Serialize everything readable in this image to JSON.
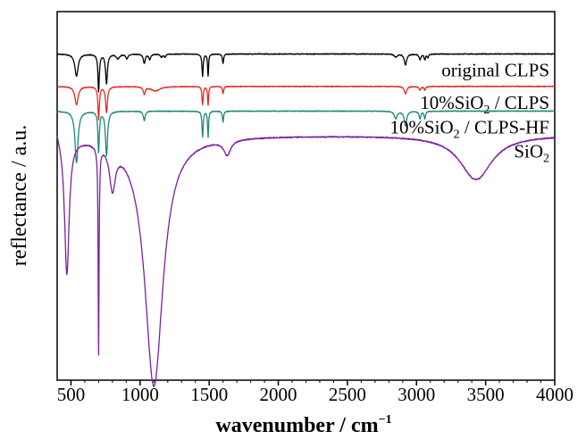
{
  "chart_data": {
    "type": "line",
    "title": "",
    "xlabel": "wavenumber / cm",
    "xlabel_superscript": "−1",
    "ylabel": "reflectance / a.u.",
    "xlim": [
      400,
      4000
    ],
    "ylim": [
      0,
      1
    ],
    "x_ticks": [
      500,
      1000,
      1500,
      2000,
      2500,
      3000,
      3500,
      4000
    ],
    "y_ticks": [],
    "grid": false,
    "legend": "inline-right",
    "series": [
      {
        "name": "original CLPS",
        "label": {
          "prefix": "original CLPS",
          "sub": "",
          "suffix": ""
        },
        "color": "#000000",
        "baseline": 0.885,
        "noise": 0.002,
        "peaks": [
          [
            540,
            0.06,
            14
          ],
          [
            700,
            0.1,
            6
          ],
          [
            757,
            0.08,
            8
          ],
          [
            840,
            0.012,
            14
          ],
          [
            905,
            0.012,
            10
          ],
          [
            1030,
            0.025,
            8
          ],
          [
            1070,
            0.015,
            8
          ],
          [
            1155,
            0.008,
            10
          ],
          [
            1180,
            0.008,
            6
          ],
          [
            1452,
            0.06,
            5
          ],
          [
            1492,
            0.06,
            4
          ],
          [
            1600,
            0.025,
            5
          ],
          [
            2850,
            0.008,
            12
          ],
          [
            2920,
            0.03,
            10
          ],
          [
            3025,
            0.015,
            8
          ],
          [
            3060,
            0.015,
            6
          ],
          [
            3082,
            0.01,
            5
          ]
        ]
      },
      {
        "name": "10%SiO2 / CLPS",
        "label": {
          "prefix": "10%SiO",
          "sub": "2",
          "suffix": " / CLPS"
        },
        "color": "#e8281e",
        "baseline": 0.797,
        "noise": 0.002,
        "peaks": [
          [
            540,
            0.05,
            14
          ],
          [
            700,
            0.09,
            6
          ],
          [
            757,
            0.07,
            8
          ],
          [
            1030,
            0.02,
            8
          ],
          [
            1110,
            0.012,
            40
          ],
          [
            1452,
            0.05,
            5
          ],
          [
            1492,
            0.05,
            4
          ],
          [
            1600,
            0.02,
            5
          ],
          [
            2920,
            0.02,
            10
          ],
          [
            3025,
            0.01,
            8
          ],
          [
            3060,
            0.01,
            6
          ]
        ]
      },
      {
        "name": "10%SiO2 / CLPS-HF",
        "label": {
          "prefix": "10%SiO",
          "sub": "2",
          "suffix": " / CLPS-HF"
        },
        "color": "#1d8778",
        "baseline": 0.73,
        "noise": 0.002,
        "peaks": [
          [
            540,
            0.14,
            13
          ],
          [
            700,
            0.11,
            6
          ],
          [
            757,
            0.12,
            9
          ],
          [
            1030,
            0.025,
            8
          ],
          [
            1452,
            0.07,
            5
          ],
          [
            1492,
            0.07,
            4
          ],
          [
            1600,
            0.03,
            5
          ],
          [
            2850,
            0.02,
            12
          ],
          [
            2920,
            0.04,
            10
          ],
          [
            3025,
            0.02,
            8
          ],
          [
            3060,
            0.02,
            6
          ]
        ]
      },
      {
        "name": "SiO2",
        "label": {
          "prefix": "SiO",
          "sub": "2",
          "suffix": ""
        },
        "color": "#7a1fa2",
        "baseline": 0.665,
        "noise": 0.003,
        "peaks": [
          [
            470,
            0.37,
            20
          ],
          [
            700,
            0.56,
            4
          ],
          [
            800,
            0.11,
            25
          ],
          [
            1100,
            0.68,
            80
          ],
          [
            1630,
            0.04,
            30
          ],
          [
            3430,
            0.12,
            140
          ]
        ],
        "edge": {
          "x": 400,
          "dy": 0.035,
          "decay": 30
        }
      }
    ]
  }
}
